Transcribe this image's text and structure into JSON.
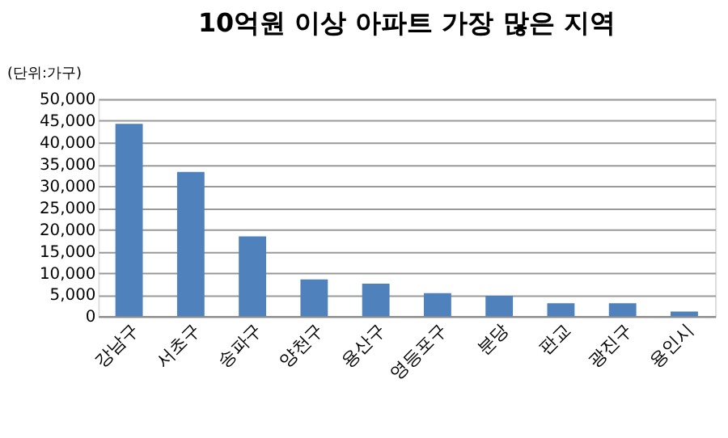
{
  "chart_data": {
    "type": "bar",
    "title": "10억원 이상 아파트 가장 많은 지역",
    "ylabel": "(단위:가구)",
    "categories": [
      "강남구",
      "서초구",
      "송파구",
      "양천구",
      "용산구",
      "영등포구",
      "분당",
      "판교",
      "광진구",
      "용인시"
    ],
    "values": [
      44300,
      33200,
      18400,
      8500,
      7500,
      5300,
      4700,
      3000,
      3000,
      1100
    ],
    "color": "#4f81bd",
    "ylim": [
      0,
      50000
    ],
    "yticks": [
      0,
      {
        "value": 5000,
        "label": "5,000"
      },
      {
        "value": 10000,
        "label": "10,000"
      },
      {
        "value": 15000,
        "label": "15,000"
      },
      {
        "value": 20000,
        "label": "20,000"
      },
      {
        "value": 25000,
        "label": "25,000"
      },
      {
        "value": 30000,
        "label": "30,000"
      },
      {
        "value": 35000,
        "label": "35,000"
      },
      {
        "value": 40000,
        "label": "40,000"
      },
      {
        "value": 45000,
        "label": "45,000"
      },
      {
        "value": 50000,
        "label": "50,000"
      }
    ],
    "grid": "y"
  }
}
